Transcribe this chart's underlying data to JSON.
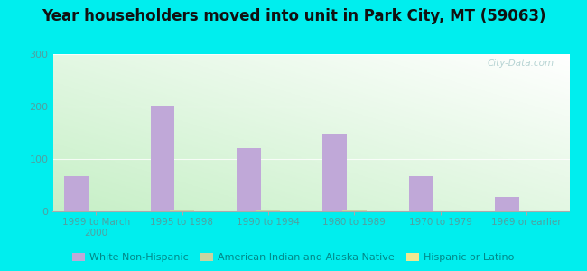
{
  "title": "Year householders moved into unit in Park City, MT (59063)",
  "categories": [
    "1999 to March\n2000",
    "1995 to 1998",
    "1990 to 1994",
    "1980 to 1989",
    "1970 to 1979",
    "1969 or earlier"
  ],
  "series": [
    {
      "name": "White Non-Hispanic",
      "color": "#c0a8d8",
      "values": [
        67,
        201,
        120,
        148,
        67,
        27
      ]
    },
    {
      "name": "American Indian and Alaska Native",
      "color": "#c8d4a0",
      "values": [
        0,
        4,
        2,
        2,
        0,
        0
      ]
    },
    {
      "name": "Hispanic or Latino",
      "color": "#f0e890",
      "values": [
        0,
        0,
        0,
        0,
        0,
        0
      ]
    }
  ],
  "ylim": [
    0,
    300
  ],
  "yticks": [
    0,
    100,
    200,
    300
  ],
  "outer_bg": "#00eeee",
  "plot_bg_left": "#c8eec0",
  "plot_bg_right": "#f8fff8",
  "watermark": "City-Data.com",
  "bar_width": 0.28,
  "title_fontsize": 12,
  "tick_color": "#50a0a0",
  "legend_text_color": "#008888"
}
